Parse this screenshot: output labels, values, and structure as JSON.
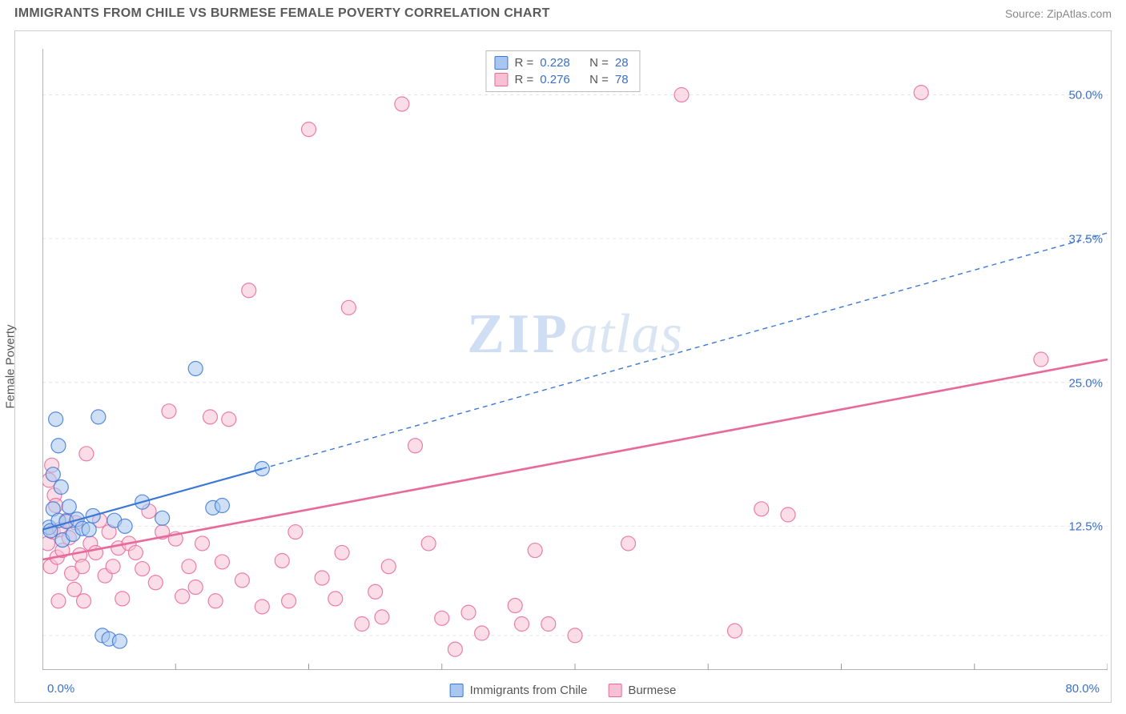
{
  "title": "IMMIGRANTS FROM CHILE VS BURMESE FEMALE POVERTY CORRELATION CHART",
  "source_label": "Source:",
  "source_name": "ZipAtlas.com",
  "ylabel": "Female Poverty",
  "watermark_bold": "ZIP",
  "watermark_italic": "atlas",
  "chart": {
    "type": "scatter",
    "background_color": "#ffffff",
    "grid_color": "#e6e6e6",
    "axis_color": "#9a9a9a",
    "tick_font_color": "#3b6fc9",
    "tick_fontsize": 15,
    "label_fontsize": 15,
    "xlim": [
      0,
      80
    ],
    "ylim": [
      0,
      54
    ],
    "xticks": [
      0,
      10,
      20,
      30,
      40,
      50,
      60,
      70,
      80
    ],
    "xtick_labels_shown": {
      "0": "0.0%",
      "80": "80.0%"
    },
    "yticks": [
      12.5,
      25.0,
      37.5,
      50.0
    ],
    "ytick_labels": [
      "12.5%",
      "25.0%",
      "37.5%",
      "50.0%"
    ],
    "hgrid_values": [
      3.0,
      12.5,
      25.0,
      37.5,
      50.0
    ],
    "marker_radius": 9,
    "marker_opacity": 0.55,
    "series": [
      {
        "name": "Immigrants from Chile",
        "color_stroke": "#3b78d6",
        "color_fill": "#a8c6ef",
        "R": 0.228,
        "N": 28,
        "regression": {
          "x1": 0,
          "y1": 12.2,
          "x2": 16.5,
          "y2": 17.5,
          "dashed_extend_to_x": 80,
          "dashed_extend_to_y": 38.0,
          "stroke_width": 2.2
        },
        "points": [
          [
            0.5,
            12.4
          ],
          [
            0.6,
            12.1
          ],
          [
            0.8,
            14.0
          ],
          [
            0.8,
            17.0
          ],
          [
            1.0,
            21.8
          ],
          [
            1.2,
            19.5
          ],
          [
            1.2,
            13.0
          ],
          [
            1.4,
            15.9
          ],
          [
            1.5,
            11.3
          ],
          [
            1.8,
            12.9
          ],
          [
            2.0,
            14.2
          ],
          [
            2.3,
            11.8
          ],
          [
            2.6,
            13.1
          ],
          [
            3.0,
            12.3
          ],
          [
            3.5,
            12.2
          ],
          [
            3.8,
            13.4
          ],
          [
            4.2,
            22.0
          ],
          [
            4.5,
            3.0
          ],
          [
            5.0,
            2.7
          ],
          [
            5.4,
            13.0
          ],
          [
            5.8,
            2.5
          ],
          [
            6.2,
            12.5
          ],
          [
            7.5,
            14.6
          ],
          [
            9.0,
            13.2
          ],
          [
            11.5,
            26.2
          ],
          [
            12.8,
            14.1
          ],
          [
            13.5,
            14.3
          ],
          [
            16.5,
            17.5
          ]
        ]
      },
      {
        "name": "Burmese",
        "color_stroke": "#e76a9b",
        "color_fill": "#f7c1d3",
        "R": 0.276,
        "N": 78,
        "regression": {
          "x1": 0,
          "y1": 9.6,
          "x2": 80,
          "y2": 27.0,
          "stroke_width": 2.6
        },
        "points": [
          [
            0.4,
            11.0
          ],
          [
            0.5,
            16.5
          ],
          [
            0.6,
            9.0
          ],
          [
            0.7,
            17.8
          ],
          [
            0.8,
            12.0
          ],
          [
            0.9,
            15.2
          ],
          [
            1.0,
            14.3
          ],
          [
            1.1,
            9.8
          ],
          [
            1.3,
            12.2
          ],
          [
            1.5,
            10.4
          ],
          [
            1.8,
            13.0
          ],
          [
            2.0,
            11.5
          ],
          [
            2.2,
            8.4
          ],
          [
            2.5,
            12.8
          ],
          [
            2.8,
            10.0
          ],
          [
            3.0,
            9.0
          ],
          [
            3.3,
            18.8
          ],
          [
            3.6,
            11.0
          ],
          [
            4.0,
            10.2
          ],
          [
            4.3,
            13.0
          ],
          [
            4.7,
            8.2
          ],
          [
            5.0,
            12.0
          ],
          [
            5.3,
            9.0
          ],
          [
            5.7,
            10.6
          ],
          [
            6.0,
            6.2
          ],
          [
            6.5,
            11.0
          ],
          [
            7.0,
            10.2
          ],
          [
            7.5,
            8.8
          ],
          [
            8.0,
            13.8
          ],
          [
            8.5,
            7.6
          ],
          [
            9.0,
            12.0
          ],
          [
            9.5,
            22.5
          ],
          [
            10.0,
            11.4
          ],
          [
            10.5,
            6.4
          ],
          [
            11.0,
            9.0
          ],
          [
            11.5,
            7.2
          ],
          [
            12.0,
            11.0
          ],
          [
            12.6,
            22.0
          ],
          [
            13.0,
            6.0
          ],
          [
            13.5,
            9.4
          ],
          [
            14.0,
            21.8
          ],
          [
            15.0,
            7.8
          ],
          [
            15.5,
            33.0
          ],
          [
            16.5,
            5.5
          ],
          [
            18.0,
            9.5
          ],
          [
            18.5,
            6.0
          ],
          [
            19.0,
            12.0
          ],
          [
            20.0,
            47.0
          ],
          [
            21.0,
            8.0
          ],
          [
            22.0,
            6.2
          ],
          [
            22.5,
            10.2
          ],
          [
            23.0,
            31.5
          ],
          [
            24.0,
            4.0
          ],
          [
            25.0,
            6.8
          ],
          [
            25.5,
            4.6
          ],
          [
            26.0,
            9.0
          ],
          [
            27.0,
            49.2
          ],
          [
            28.0,
            19.5
          ],
          [
            29.0,
            11.0
          ],
          [
            30.0,
            4.5
          ],
          [
            31.0,
            1.8
          ],
          [
            32.0,
            5.0
          ],
          [
            33.0,
            3.2
          ],
          [
            35.5,
            5.6
          ],
          [
            36.0,
            4.0
          ],
          [
            37.0,
            10.4
          ],
          [
            38.0,
            4.0
          ],
          [
            40.0,
            3.0
          ],
          [
            44.0,
            11.0
          ],
          [
            48.0,
            50.0
          ],
          [
            52.0,
            3.4
          ],
          [
            54.0,
            14.0
          ],
          [
            56.0,
            13.5
          ],
          [
            66.0,
            50.2
          ],
          [
            75.0,
            27.0
          ],
          [
            1.2,
            6.0
          ],
          [
            2.4,
            7.0
          ],
          [
            3.1,
            6.0
          ]
        ]
      }
    ]
  },
  "top_legend": {
    "rows": [
      {
        "swatch_fill": "#a8c6ef",
        "swatch_stroke": "#3b78d6",
        "r_label": "R =",
        "r_val": "0.228",
        "n_label": "N =",
        "n_val": "28"
      },
      {
        "swatch_fill": "#f7c1d3",
        "swatch_stroke": "#e76a9b",
        "r_label": "R =",
        "r_val": "0.276",
        "n_label": "N =",
        "n_val": "78"
      }
    ]
  },
  "bottom_legend": {
    "items": [
      {
        "swatch_fill": "#a8c6ef",
        "swatch_stroke": "#3b78d6",
        "label": "Immigrants from Chile"
      },
      {
        "swatch_fill": "#f7c1d3",
        "swatch_stroke": "#e76a9b",
        "label": "Burmese"
      }
    ]
  }
}
